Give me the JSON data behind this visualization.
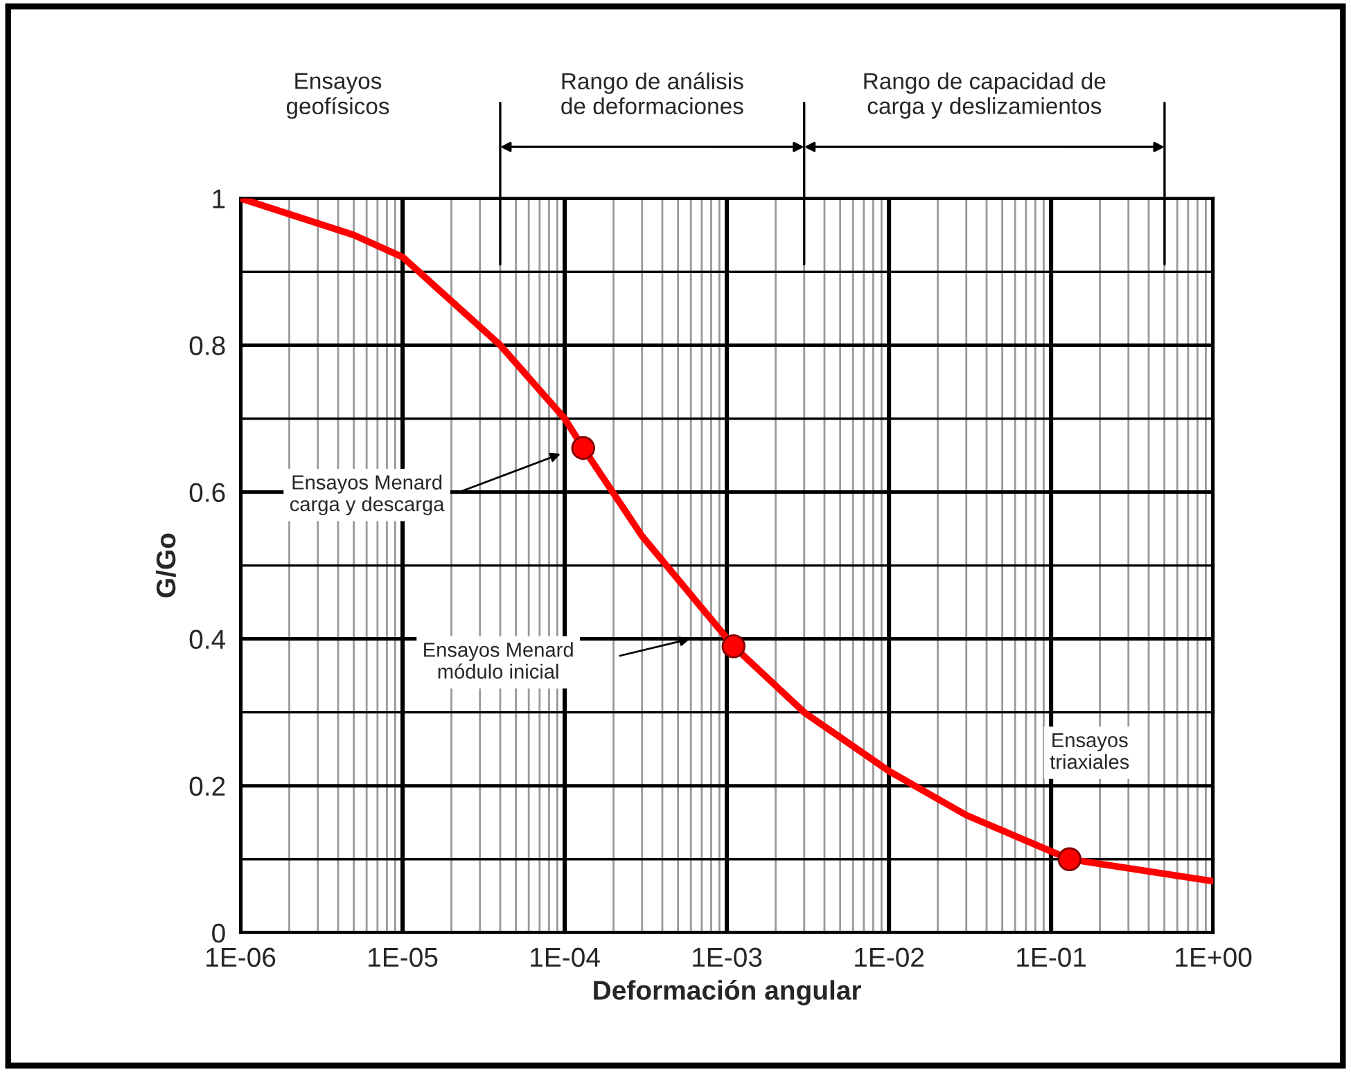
{
  "chart_data": {
    "type": "line",
    "xlabel": "Deformación angular",
    "ylabel": "G/Go",
    "series": [
      {
        "color": "#ff0000",
        "x": [
          1e-06,
          5e-06,
          1e-05,
          4e-05,
          0.0001,
          0.00013,
          0.0003,
          0.0011,
          0.003,
          0.01,
          0.03,
          0.13,
          1
        ],
        "values": [
          1.0,
          0.95,
          0.92,
          0.8,
          0.7,
          0.66,
          0.54,
          0.39,
          0.3,
          0.22,
          0.16,
          0.1,
          0.07
        ],
        "marker": "none"
      },
      {
        "type": "scatter",
        "color": "#ff0000",
        "x": [
          0.00013,
          0.0011,
          0.13
        ],
        "values": [
          0.66,
          0.39,
          0.1
        ],
        "marker": "circle"
      }
    ],
    "log": "x",
    "xlim": [
      1e-06,
      1
    ],
    "ylim": [
      0,
      1
    ],
    "xticks": [
      {
        "value": 1e-06,
        "label": "1E-06"
      },
      {
        "value": 1e-05,
        "label": "1E-05"
      },
      {
        "value": 0.0001,
        "label": "1E-04"
      },
      {
        "value": 0.001,
        "label": "1E-03"
      },
      {
        "value": 0.01,
        "label": "1E-02"
      },
      {
        "value": 0.1,
        "label": "1E-01"
      },
      {
        "value": 1,
        "label": "1E+00"
      }
    ],
    "yticks": [
      0,
      0.2,
      0.4,
      0.6,
      0.8,
      1
    ],
    "grid": true,
    "legend": false,
    "annotations": [
      "Ensayos\ngeofísicos",
      "Rango de análisis\nde deformaciones",
      "Rango de capacidad de\ncarga y deslizamientos",
      "Ensayos Menard\ncarga y descarga",
      "Ensayos Menard\nmódulo inicial",
      "Ensayos\ntriaxiales"
    ]
  }
}
